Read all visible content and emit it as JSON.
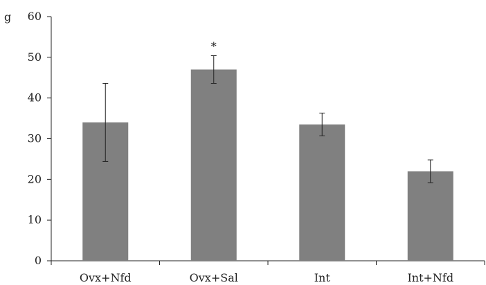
{
  "chart_data": {
    "type": "bar",
    "ylabel": "g",
    "ylim": [
      0,
      60
    ],
    "yticks": [
      0,
      10,
      20,
      30,
      40,
      50,
      60
    ],
    "grid": false,
    "categories": [
      "Ovx+Nfd",
      "Ovx+Sal",
      "Int",
      "Int+Nfd"
    ],
    "values": [
      34,
      47,
      33.5,
      22
    ],
    "errors": [
      9.6,
      3.4,
      2.8,
      2.8
    ],
    "annotations": [
      "",
      "*",
      "",
      ""
    ],
    "bar_color": "#808080",
    "axis_color": "#222222"
  }
}
